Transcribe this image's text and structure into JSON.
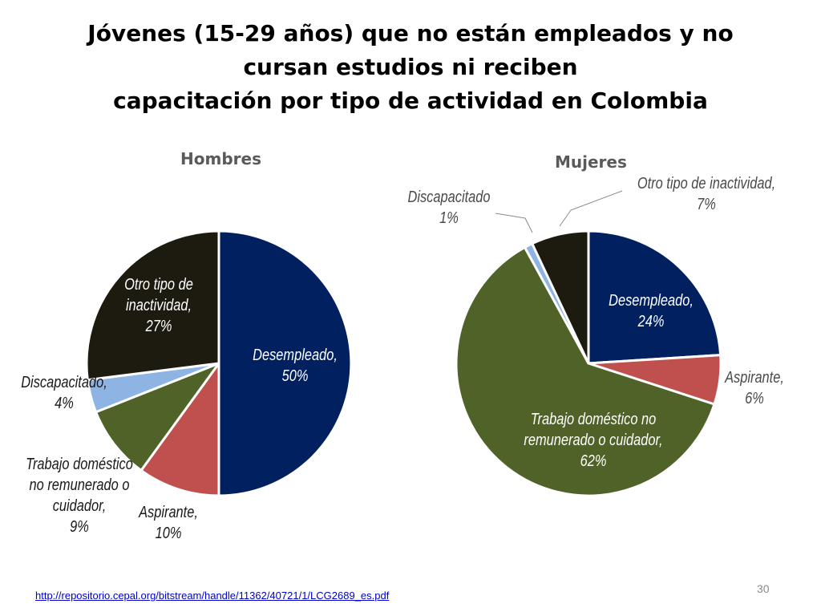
{
  "title": {
    "line1": "Jóvenes (15-29 años) que no están empleados y no",
    "line2": "cursan estudios ni reciben",
    "line3": "capacitación por tipo de actividad en Colombia"
  },
  "chart_data": [
    {
      "type": "pie",
      "title": "Hombres",
      "slices": [
        {
          "name": "Desempleado",
          "value": 50,
          "color": "#002060",
          "label": [
            "Desempleado,",
            "50%"
          ]
        },
        {
          "name": "Aspirante",
          "value": 10,
          "color": "#c0504d",
          "label": [
            "Aspirante,",
            "10%"
          ]
        },
        {
          "name": "Trabajo doméstico no remunerado o cuidador",
          "value": 9,
          "color": "#4f6228",
          "label": [
            "Trabajo doméstico",
            "no remunerado  o",
            "cuidador,",
            "9%"
          ]
        },
        {
          "name": "Discapacitado",
          "value": 4,
          "color": "#8eb4e3",
          "label": [
            "Discapacitado,",
            "4%"
          ]
        },
        {
          "name": "Otro tipo de inactividad",
          "value": 27,
          "color": "#1d1b10",
          "label": [
            "Otro tipo de",
            "inactividad,",
            "27%"
          ]
        }
      ]
    },
    {
      "type": "pie",
      "title": "Mujeres",
      "slices": [
        {
          "name": "Desempleado",
          "value": 24,
          "color": "#002060",
          "label": [
            "Desempleado,",
            "24%"
          ]
        },
        {
          "name": "Aspirante",
          "value": 6,
          "color": "#c0504d",
          "label": [
            "Aspirante,",
            "6%"
          ]
        },
        {
          "name": "Trabajo doméstico no remunerado o cuidador",
          "value": 62,
          "color": "#4f6228",
          "label": [
            "Trabajo doméstico no",
            "remunerado  o cuidador,",
            "62%"
          ]
        },
        {
          "name": "Discapacitado",
          "value": 1,
          "color": "#8eb4e3",
          "label": [
            "Discapacitado",
            "1%"
          ]
        },
        {
          "name": "Otro tipo de inactividad",
          "value": 7,
          "color": "#1d1b10",
          "label": [
            "Otro tipo de inactividad,",
            "7%"
          ]
        }
      ]
    }
  ],
  "footer": {
    "source_url": "http://repositorio.cepal.org/bitstream/handle/11362/40721/1/LCG2689_es.pdf",
    "page_number": "30"
  }
}
